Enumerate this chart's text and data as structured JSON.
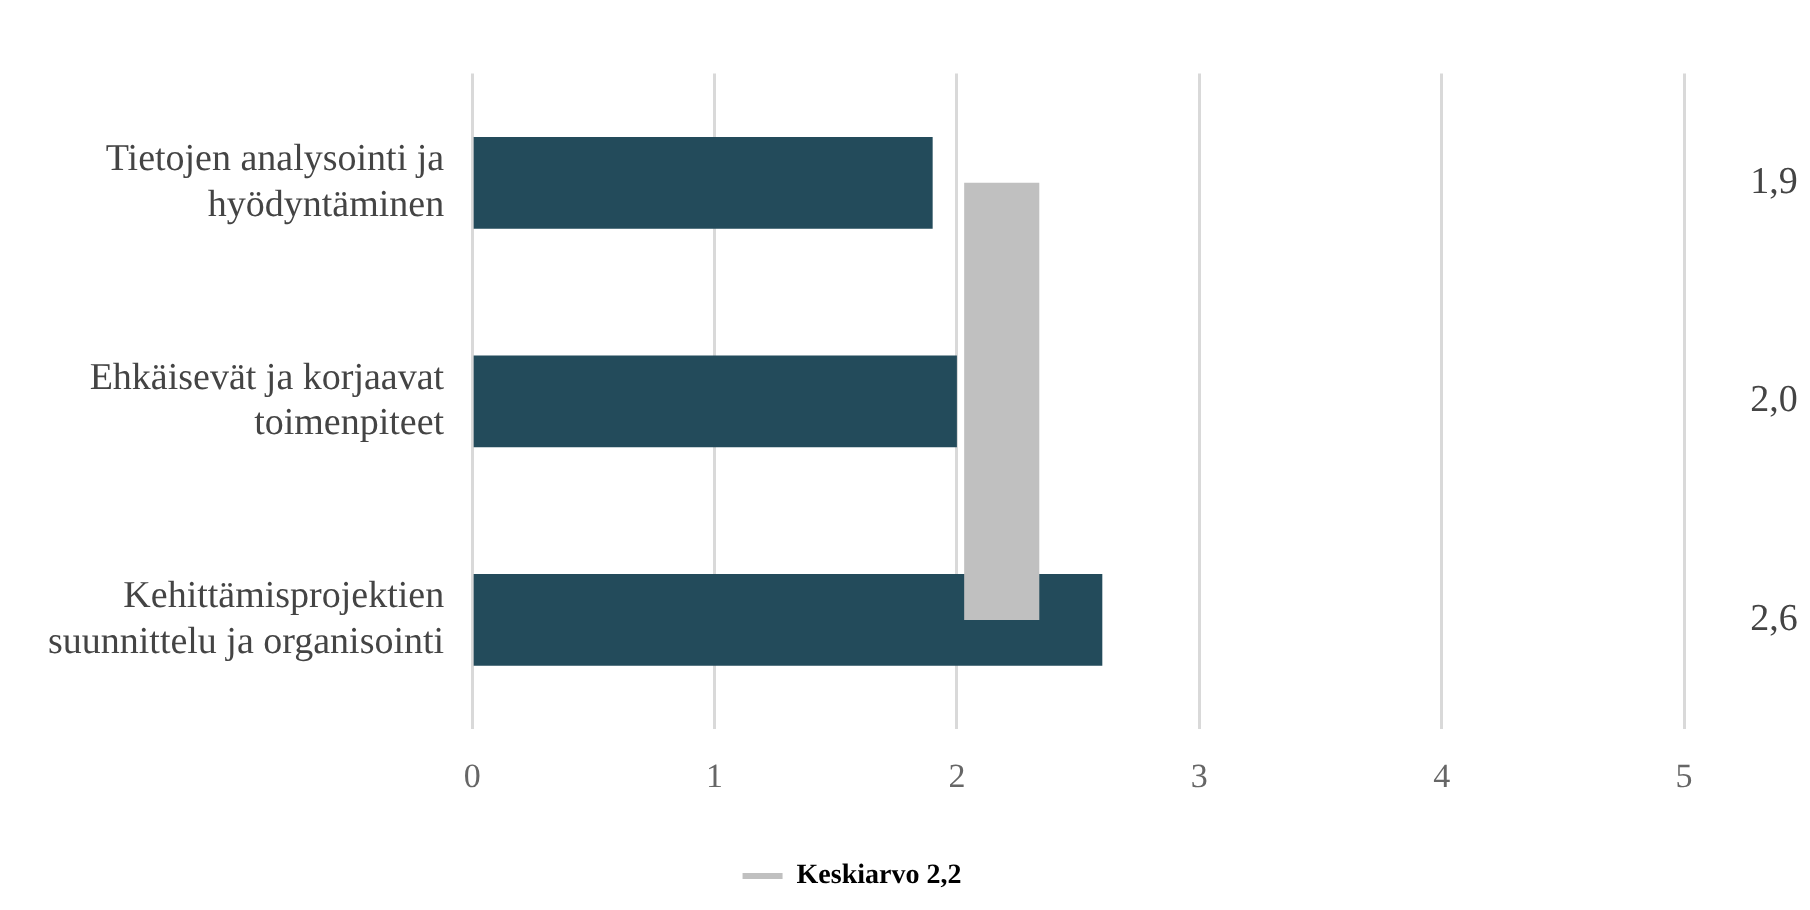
{
  "chart_data": {
    "type": "bar",
    "orientation": "horizontal",
    "categories": [
      "Tietojen analysointi ja hyödyntäminen",
      "Ehkäisevät ja korjaavat toimenpiteet",
      "Kehittämisprojektien suunnittelu ja organisointi"
    ],
    "values": [
      1.9,
      2.0,
      2.6
    ],
    "color": "#234b5b",
    "value_labels": [
      "1,9",
      "2,0",
      "2,6"
    ],
    "xlim": [
      0,
      5
    ],
    "xticks": [
      0,
      1,
      2,
      3,
      4,
      5
    ],
    "grid": "x",
    "bands": [
      {
        "axis": "x",
        "from": 2.03,
        "to": 2.34,
        "label": "Keskiarvo 2,2",
        "color": "#c0c0c0"
      }
    ],
    "legend": "bottom"
  }
}
